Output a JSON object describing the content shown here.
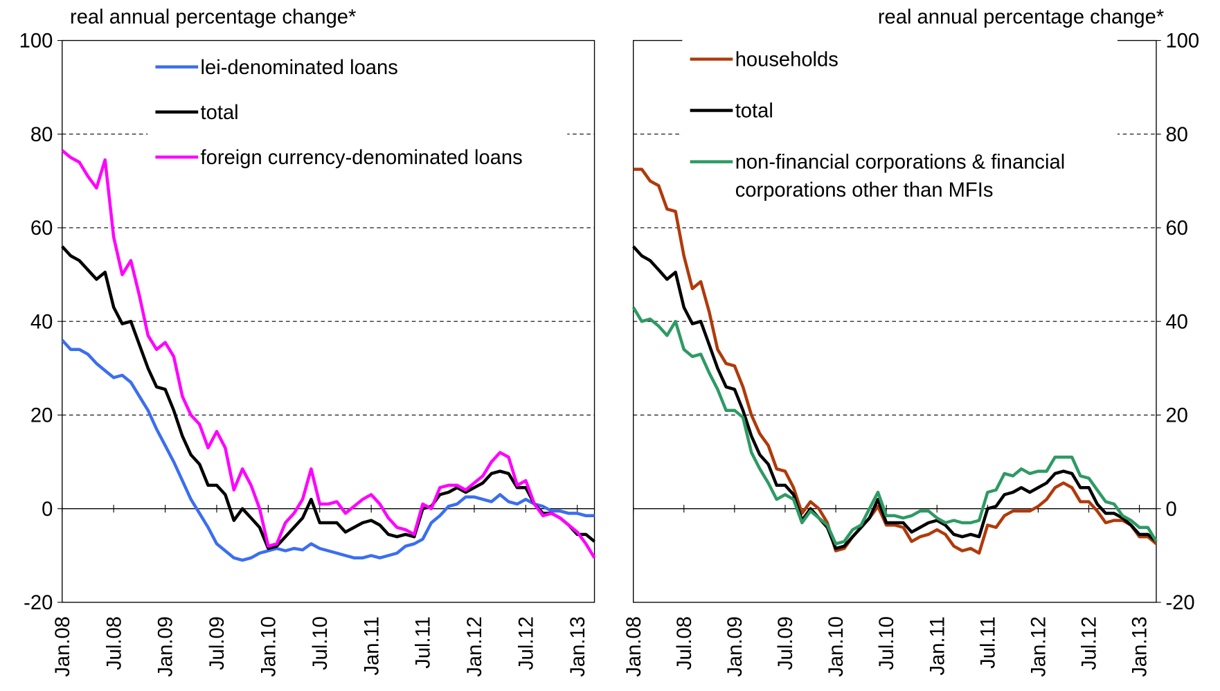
{
  "chart_data": [
    {
      "type": "line",
      "y_axis_label": "real annual percentage change*",
      "categories": [
        "Jan.08",
        null,
        null,
        null,
        null,
        null,
        "Jul.08",
        null,
        null,
        null,
        null,
        null,
        "Jan.09",
        null,
        null,
        null,
        null,
        null,
        "Jul.09",
        null,
        null,
        null,
        null,
        null,
        "Jan.10",
        null,
        null,
        null,
        null,
        null,
        "Jul.10",
        null,
        null,
        null,
        null,
        null,
        "Jan.11",
        null,
        null,
        null,
        null,
        null,
        "Jul.11",
        null,
        null,
        null,
        null,
        null,
        "Jan.12",
        null,
        null,
        null,
        null,
        null,
        "Jul.12",
        null,
        null,
        null,
        null,
        null,
        "Jan.13",
        null,
        null
      ],
      "ylim": [
        -20,
        100
      ],
      "yticks": [
        -20,
        0,
        20,
        40,
        60,
        80,
        100
      ],
      "grid": true,
      "y_axis_side": "left",
      "legend": "top",
      "series": [
        {
          "name": "lei-denominated loans",
          "color": "#3b6ef0",
          "values": [
            36,
            34,
            34,
            33,
            31,
            29.5,
            28,
            28.5,
            27,
            24,
            21,
            17,
            13.5,
            10,
            6,
            2,
            -1,
            -4,
            -7.5,
            -9,
            -10.5,
            -11,
            -10.5,
            -9.5,
            -9,
            -8.5,
            -9,
            -8.5,
            -8.8,
            -7.5,
            -8.5,
            -9,
            -9.5,
            -10,
            -10.5,
            -10.5,
            -10,
            -10.5,
            -10,
            -9.5,
            -8,
            -7.5,
            -6.5,
            -3,
            -1.5,
            0.5,
            1,
            2.5,
            2.5,
            2,
            1.5,
            3,
            1.5,
            1,
            2,
            1,
            0.5,
            -0.5,
            -0.5,
            -1,
            -1,
            -1.5,
            -1.5
          ]
        },
        {
          "name": "total",
          "color": "#000000",
          "values": [
            56,
            54,
            53,
            51,
            49,
            50.5,
            43,
            39.5,
            40,
            35,
            30,
            26,
            25.5,
            21,
            15.5,
            11.5,
            9.5,
            5,
            5,
            3,
            -2.5,
            0,
            -2,
            -4,
            -8.5,
            -8,
            -6,
            -4,
            -2,
            2,
            -3,
            -3,
            -3,
            -5,
            -4,
            -3,
            -2.5,
            -3.5,
            -5.5,
            -6,
            -5.5,
            -6,
            0,
            0.5,
            3,
            3.5,
            4.5,
            3.5,
            4.5,
            5.5,
            7.5,
            8,
            7.5,
            4.5,
            4.5,
            1,
            -1,
            -1,
            -2,
            -3.5,
            -5.5,
            -5.5,
            -7
          ]
        },
        {
          "name": "foreign currency-denominated loans",
          "color": "#ff00ff",
          "values": [
            76.5,
            75,
            74,
            71,
            68.5,
            74.5,
            58,
            50,
            53,
            45.5,
            37,
            34,
            35.5,
            32.5,
            24,
            20,
            18,
            13,
            16.5,
            13,
            4,
            8.5,
            5,
            0,
            -8,
            -7.5,
            -3,
            -1,
            2,
            8.5,
            1,
            1,
            1.5,
            -1,
            0.5,
            2,
            3,
            1,
            -2,
            -4,
            -4.5,
            -5.5,
            1,
            0,
            4.5,
            5,
            5,
            4,
            5.5,
            7,
            10,
            12,
            11,
            5,
            6,
            1,
            -1.5,
            -1,
            -2,
            -3.5,
            -5,
            -7.5,
            -10.5
          ]
        }
      ]
    },
    {
      "type": "line",
      "y_axis_label": "real annual percentage change*",
      "categories": [
        "Jan.08",
        null,
        null,
        null,
        null,
        null,
        "Jul.08",
        null,
        null,
        null,
        null,
        null,
        "Jan.09",
        null,
        null,
        null,
        null,
        null,
        "Jul.09",
        null,
        null,
        null,
        null,
        null,
        "Jan.10",
        null,
        null,
        null,
        null,
        null,
        "Jul.10",
        null,
        null,
        null,
        null,
        null,
        "Jan.11",
        null,
        null,
        null,
        null,
        null,
        "Jul.11",
        null,
        null,
        null,
        null,
        null,
        "Jan.12",
        null,
        null,
        null,
        null,
        null,
        "Jul.12",
        null,
        null,
        null,
        null,
        null,
        "Jan.13",
        null,
        null
      ],
      "ylim": [
        -20,
        100
      ],
      "yticks": [
        -20,
        0,
        20,
        40,
        60,
        80,
        100
      ],
      "grid": true,
      "y_axis_side": "right",
      "legend": "top",
      "series": [
        {
          "name": "households",
          "color": "#b03a0a",
          "values": [
            72.5,
            72.5,
            70,
            69,
            64,
            63.5,
            54,
            47,
            48.5,
            42,
            34,
            31,
            30.5,
            26,
            20,
            16,
            13.5,
            8.5,
            8,
            4.5,
            -1,
            1.5,
            0,
            -3,
            -9,
            -8.5,
            -6,
            -4,
            -2,
            0.5,
            -3.5,
            -3.5,
            -4,
            -7,
            -6,
            -5.5,
            -4.5,
            -5.5,
            -8,
            -9,
            -8.5,
            -9.5,
            -3.5,
            -4,
            -1.5,
            -0.5,
            -0.5,
            -0.5,
            0.5,
            2,
            4.5,
            5.5,
            4.5,
            1.5,
            1.5,
            -0.5,
            -3,
            -2.5,
            -2.5,
            -3.5,
            -6,
            -6,
            -7.5
          ]
        },
        {
          "name": "total",
          "color": "#000000",
          "values": [
            56,
            54,
            53,
            51,
            49,
            50.5,
            43,
            39.5,
            40,
            35,
            30,
            26,
            25.5,
            21,
            15.5,
            11.5,
            9.5,
            5,
            5,
            3,
            -2.5,
            0,
            -2,
            -4,
            -8.5,
            -8,
            -6,
            -4,
            -2,
            2,
            -3,
            -3,
            -3,
            -5,
            -4,
            -3,
            -2.5,
            -3.5,
            -5.5,
            -6,
            -5.5,
            -6,
            0,
            0.5,
            3,
            3.5,
            4.5,
            3.5,
            4.5,
            5.5,
            7.5,
            8,
            7.5,
            4.5,
            4.5,
            1,
            -1,
            -1,
            -2,
            -3.5,
            -5.5,
            -5.5,
            -7
          ]
        },
        {
          "name": "non-financial corporations & financial corporations other than MFIs",
          "color": "#2e9a64",
          "values": [
            43,
            40,
            40.5,
            39,
            37,
            40,
            34,
            32.5,
            33,
            29,
            25.5,
            21,
            21,
            19.5,
            12,
            8.5,
            5.5,
            2,
            3,
            2,
            -3,
            -0.5,
            -2,
            -3.5,
            -7.5,
            -7,
            -4.5,
            -3.5,
            0,
            3.5,
            -1.5,
            -1.5,
            -2,
            -1.5,
            -0.5,
            -0.5,
            -2,
            -3,
            -2.5,
            -3,
            -3,
            -2.5,
            3.5,
            4,
            7.5,
            7,
            8.5,
            7.5,
            8,
            8,
            11,
            11,
            11,
            7,
            6.5,
            4,
            1.5,
            1,
            -1.5,
            -2.5,
            -4,
            -4,
            -7
          ]
        }
      ]
    }
  ]
}
